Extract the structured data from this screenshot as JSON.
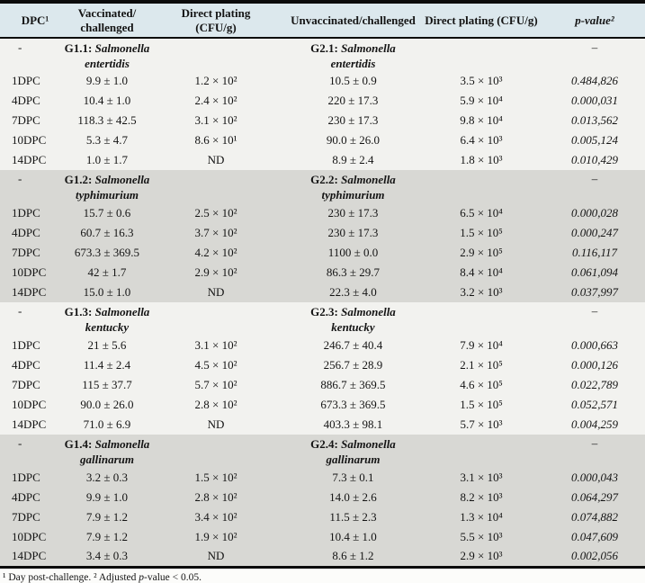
{
  "colors": {
    "header_bg": "#dce8ed",
    "band_light": "#f2f2ef",
    "band_gray": "#d8d8d4",
    "rule": "#0b0b0b"
  },
  "table": {
    "headers": [
      {
        "lines": [
          "DPC¹"
        ]
      },
      {
        "lines": [
          "Vaccinated/",
          "challenged"
        ]
      },
      {
        "lines": [
          "Direct plating",
          "(CFU/g)"
        ]
      },
      {
        "lines": [
          "Unvaccinated/challenged"
        ]
      },
      {
        "lines": [
          "Direct plating (CFU/g)"
        ]
      },
      {
        "lines": [
          "p-value²"
        ]
      }
    ]
  },
  "sections": [
    {
      "shaded": false,
      "dash_left": "-",
      "dash_right": "–",
      "left": {
        "code": "G1.1:",
        "genus": "Salmonella",
        "species": "entertidis"
      },
      "right": {
        "code": "G2.1:",
        "genus": "Salmonella",
        "species": "entertidis"
      },
      "rows": [
        {
          "dpc": "1DPC",
          "vaccinated": "9.9 ± 1.0",
          "vacc_plating": "1.2 × 10²",
          "unvaccinated": "10.5 ± 0.9",
          "unvacc_plating": "3.5 × 10³",
          "p_value": "0.484,826"
        },
        {
          "dpc": "4DPC",
          "vaccinated": "10.4 ± 1.0",
          "vacc_plating": "2.4 × 10²",
          "unvaccinated": "220 ± 17.3",
          "unvacc_plating": "5.9 × 10⁴",
          "p_value": "0.000,031"
        },
        {
          "dpc": "7DPC",
          "vaccinated": "118.3 ± 42.5",
          "vacc_plating": "3.1 × 10²",
          "unvaccinated": "230 ± 17.3",
          "unvacc_plating": "9.8 × 10⁴",
          "p_value": "0.013,562"
        },
        {
          "dpc": "10DPC",
          "vaccinated": "5.3 ± 4.7",
          "vacc_plating": "8.6 × 10¹",
          "unvaccinated": "90.0 ± 26.0",
          "unvacc_plating": "6.4 × 10³",
          "p_value": "0.005,124"
        },
        {
          "dpc": "14DPC",
          "vaccinated": "1.0 ± 1.7",
          "vacc_plating": "ND",
          "unvaccinated": "8.9 ± 2.4",
          "unvacc_plating": "1.8 × 10³",
          "p_value": "0.010,429"
        }
      ]
    },
    {
      "shaded": true,
      "dash_left": "-",
      "dash_right": "–",
      "left": {
        "code": "G1.2:",
        "genus": "Salmonella",
        "species": "typhimurium"
      },
      "right": {
        "code": "G2.2:",
        "genus": "Salmonella",
        "species": "typhimurium"
      },
      "rows": [
        {
          "dpc": "1DPC",
          "vaccinated": "15.7 ± 0.6",
          "vacc_plating": "2.5 × 10²",
          "unvaccinated": "230 ± 17.3",
          "unvacc_plating": "6.5 × 10⁴",
          "p_value": "0.000,028"
        },
        {
          "dpc": "4DPC",
          "vaccinated": "60.7 ± 16.3",
          "vacc_plating": "3.7 × 10²",
          "unvaccinated": "230 ± 17.3",
          "unvacc_plating": "1.5 × 10⁵",
          "p_value": "0.000,247"
        },
        {
          "dpc": "7DPC",
          "vaccinated": "673.3 ± 369.5",
          "vacc_plating": "4.2 × 10²",
          "unvaccinated": "1100 ± 0.0",
          "unvacc_plating": "2.9 × 10⁵",
          "p_value": "0.116,117"
        },
        {
          "dpc": "10DPC",
          "vaccinated": "42 ± 1.7",
          "vacc_plating": "2.9 × 10²",
          "unvaccinated": "86.3 ± 29.7",
          "unvacc_plating": "8.4 × 10⁴",
          "p_value": "0.061,094"
        },
        {
          "dpc": "14DPC",
          "vaccinated": "15.0 ± 1.0",
          "vacc_plating": "ND",
          "unvaccinated": "22.3 ± 4.0",
          "unvacc_plating": "3.2 × 10³",
          "p_value": "0.037,997"
        }
      ]
    },
    {
      "shaded": false,
      "dash_left": "-",
      "dash_right": "–",
      "left": {
        "code": "G1.3:",
        "genus": "Salmonella",
        "species": "kentucky"
      },
      "right": {
        "code": "G2.3:",
        "genus": "Salmonella",
        "species": "kentucky"
      },
      "rows": [
        {
          "dpc": "1DPC",
          "vaccinated": "21 ± 5.6",
          "vacc_plating": "3.1 × 10²",
          "unvaccinated": "246.7 ± 40.4",
          "unvacc_plating": "7.9 × 10⁴",
          "p_value": "0.000,663"
        },
        {
          "dpc": "4DPC",
          "vaccinated": "11.4 ± 2.4",
          "vacc_plating": "4.5 × 10²",
          "unvaccinated": "256.7 ± 28.9",
          "unvacc_plating": "2.1 × 10⁵",
          "p_value": "0.000,126"
        },
        {
          "dpc": "7DPC",
          "vaccinated": "115 ± 37.7",
          "vacc_plating": "5.7 × 10²",
          "unvaccinated": "886.7 ± 369.5",
          "unvacc_plating": "4.6 × 10⁵",
          "p_value": "0.022,789"
        },
        {
          "dpc": "10DPC",
          "vaccinated": "90.0 ± 26.0",
          "vacc_plating": "2.8 × 10²",
          "unvaccinated": "673.3 ± 369.5",
          "unvacc_plating": "1.5 × 10⁵",
          "p_value": "0.052,571"
        },
        {
          "dpc": "14DPC",
          "vaccinated": "71.0 ± 6.9",
          "vacc_plating": "ND",
          "unvaccinated": "403.3 ± 98.1",
          "unvacc_plating": "5.7 × 10³",
          "p_value": "0.004,259"
        }
      ]
    },
    {
      "shaded": true,
      "dash_left": "-",
      "dash_right": "–",
      "left": {
        "code": "G1.4:",
        "genus": "Salmonella",
        "species": "gallinarum"
      },
      "right": {
        "code": "G2.4:",
        "genus": "Salmonella",
        "species": "gallinarum"
      },
      "rows": [
        {
          "dpc": "1DPC",
          "vaccinated": "3.2 ± 0.3",
          "vacc_plating": "1.5 × 10²",
          "unvaccinated": "7.3 ± 0.1",
          "unvacc_plating": "3.1 × 10³",
          "p_value": "0.000,043"
        },
        {
          "dpc": "4DPC",
          "vaccinated": "9.9 ± 1.0",
          "vacc_plating": "2.8 × 10²",
          "unvaccinated": "14.0 ± 2.6",
          "unvacc_plating": "8.2 × 10³",
          "p_value": "0.064,297"
        },
        {
          "dpc": "7DPC",
          "vaccinated": "7.9 ± 1.2",
          "vacc_plating": "3.4 × 10²",
          "unvaccinated": "11.5 ± 2.3",
          "unvacc_plating": "1.3 × 10⁴",
          "p_value": "0.074,882"
        },
        {
          "dpc": "10DPC",
          "vaccinated": "7.9 ± 1.2",
          "vacc_plating": "1.9 × 10²",
          "unvaccinated": "10.4 ± 1.0",
          "unvacc_plating": "5.5 × 10³",
          "p_value": "0.047,609"
        },
        {
          "dpc": "14DPC",
          "vaccinated": "3.4 ± 0.3",
          "vacc_plating": "ND",
          "unvaccinated": "8.6 ± 1.2",
          "unvacc_plating": "2.9 × 10³",
          "p_value": "0.002,056"
        }
      ]
    }
  ],
  "footnote": {
    "part1": "¹ Day post-challenge. ² Adjusted ",
    "italic_p": "p",
    "part2": "-value < 0.05."
  }
}
